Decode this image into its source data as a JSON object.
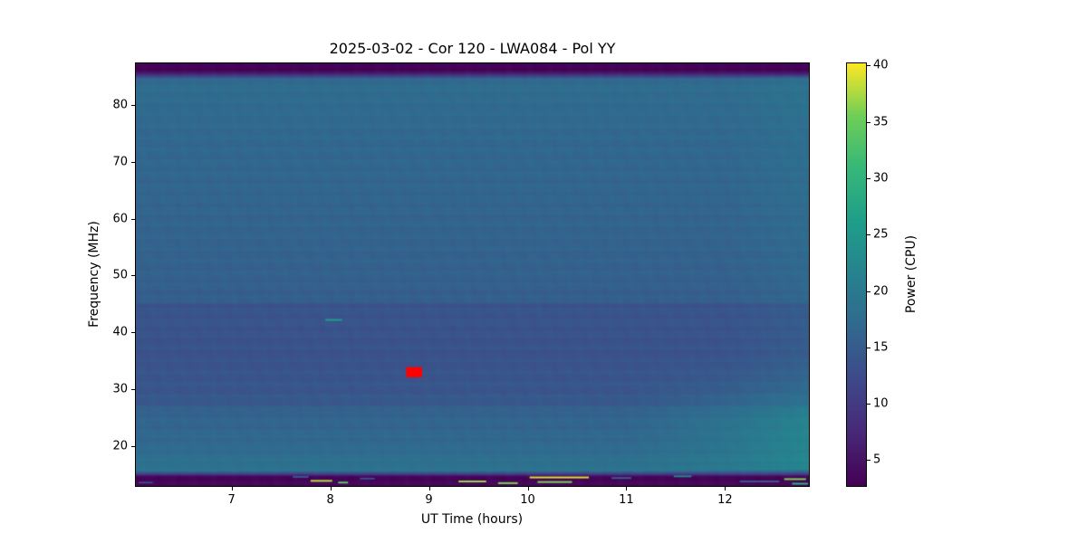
{
  "chart_data": {
    "type": "heatmap",
    "title": "2025-03-02 - Cor 120 - LWA084 - Pol YY",
    "xlabel": "UT Time (hours)",
    "ylabel": "Frequency (MHz)",
    "x_range": [
      6.03,
      12.85
    ],
    "y_range": [
      13.0,
      87.3
    ],
    "x_ticks": [
      7,
      8,
      9,
      10,
      11,
      12
    ],
    "y_ticks": [
      20,
      30,
      40,
      50,
      60,
      70,
      80
    ],
    "grid": false,
    "colorbar": {
      "label": "Power (CPU)",
      "ticks": [
        5,
        10,
        15,
        20,
        25,
        30,
        35,
        40
      ],
      "vmin": 2.7,
      "vmax": 40.2,
      "colormap": "viridis",
      "colormap_stops": [
        [
          0.0,
          "#440154"
        ],
        [
          0.125,
          "#482878"
        ],
        [
          0.25,
          "#3e4989"
        ],
        [
          0.375,
          "#31688e"
        ],
        [
          0.5,
          "#26828e"
        ],
        [
          0.625,
          "#1f9e89"
        ],
        [
          0.75,
          "#35b779"
        ],
        [
          0.875,
          "#6ece58"
        ],
        [
          1.0,
          "#fde725"
        ]
      ]
    },
    "background_profile": [
      [
        13.0,
        3.2
      ],
      [
        14.6,
        3.2
      ],
      [
        15.2,
        12.0
      ],
      [
        15.8,
        19.0
      ],
      [
        16.5,
        18.5
      ],
      [
        18.0,
        18.0
      ],
      [
        20.0,
        17.0
      ],
      [
        23.0,
        16.5
      ],
      [
        26.0,
        16.0
      ],
      [
        27.5,
        14.5
      ],
      [
        30.0,
        14.0
      ],
      [
        33.0,
        13.8
      ],
      [
        36.0,
        13.5
      ],
      [
        40.0,
        13.6
      ],
      [
        44.0,
        13.8
      ],
      [
        44.6,
        13.2
      ],
      [
        45.2,
        15.2
      ],
      [
        48.0,
        15.5
      ],
      [
        52.0,
        15.8
      ],
      [
        56.0,
        16.0
      ],
      [
        60.0,
        16.2
      ],
      [
        65.0,
        16.4
      ],
      [
        70.0,
        16.6
      ],
      [
        75.0,
        16.8
      ],
      [
        80.0,
        17.2
      ],
      [
        83.0,
        17.5
      ],
      [
        84.5,
        17.0
      ],
      [
        85.5,
        6.0
      ],
      [
        86.2,
        3.0
      ],
      [
        87.3,
        2.8
      ]
    ],
    "time_brightening": {
      "t_start": 11.0,
      "f_center": 23,
      "f_sigma": 6,
      "max_boost": 4.5
    },
    "edge_brightening": {
      "t_start": 12.0,
      "rate": 1.5,
      "max_boost": 1.3
    },
    "features": {
      "red_marker": {
        "t": 8.85,
        "f": 33,
        "color": "#ff0000",
        "width_hours": 0.16,
        "height_mhz": 1.8
      },
      "teal_dash": {
        "t0": 7.95,
        "t1": 8.12,
        "f": 42.2,
        "power": 26
      }
    },
    "streaks": [
      {
        "t0": 6.06,
        "t1": 6.2,
        "f": 13.6,
        "power": 12
      },
      {
        "t0": 7.62,
        "t1": 7.78,
        "f": 14.6,
        "power": 14
      },
      {
        "t0": 7.8,
        "t1": 8.02,
        "f": 13.9,
        "power": 38
      },
      {
        "t0": 8.08,
        "t1": 8.18,
        "f": 13.6,
        "power": 34
      },
      {
        "t0": 8.3,
        "t1": 8.45,
        "f": 14.3,
        "power": 13
      },
      {
        "t0": 9.3,
        "t1": 9.58,
        "f": 13.8,
        "power": 37
      },
      {
        "t0": 9.7,
        "t1": 9.9,
        "f": 13.5,
        "power": 36
      },
      {
        "t0": 10.02,
        "t1": 10.62,
        "f": 14.5,
        "power": 39
      },
      {
        "t0": 10.1,
        "t1": 10.45,
        "f": 13.7,
        "power": 36
      },
      {
        "t0": 10.85,
        "t1": 11.05,
        "f": 14.4,
        "power": 15
      },
      {
        "t0": 11.48,
        "t1": 11.66,
        "f": 14.7,
        "power": 22
      },
      {
        "t0": 12.15,
        "t1": 12.55,
        "f": 13.8,
        "power": 14
      },
      {
        "t0": 12.6,
        "t1": 12.82,
        "f": 14.2,
        "power": 36
      },
      {
        "t0": 12.68,
        "t1": 12.84,
        "f": 13.4,
        "power": 30
      }
    ]
  }
}
